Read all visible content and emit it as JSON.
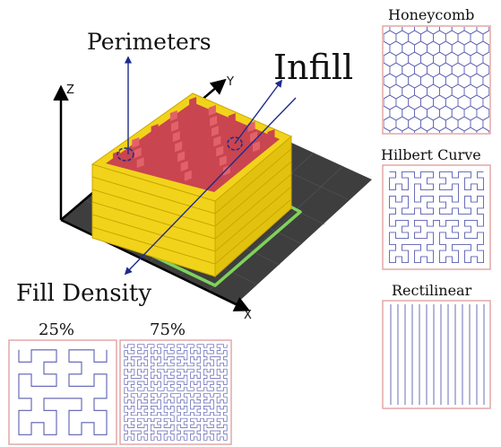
{
  "diagram": {
    "labels": {
      "perimeters": "Perimeters",
      "infill": "Infill",
      "fill_density": "Fill Density"
    },
    "axes": {
      "x": "X",
      "y": "Y",
      "z": "Z"
    }
  },
  "patterns": [
    {
      "id": "honeycomb",
      "title": "Honeycomb"
    },
    {
      "id": "hilbert",
      "title": "Hilbert Curve"
    },
    {
      "id": "rectilinear",
      "title": "Rectilinear"
    }
  ],
  "density_samples": [
    {
      "id": "low",
      "label": "25%"
    },
    {
      "id": "high",
      "label": "75%"
    }
  ],
  "colors": {
    "wall_yellow": "#f2d31b",
    "wall_yellow_dark": "#d9b800",
    "infill_red": "#e2626a",
    "infill_red_dark": "#c9454f",
    "bed_dark": "#3e3e3e",
    "skirt_green": "#7fd35a",
    "pattern_line": "#5a5fb0",
    "panel_border": "#e4a7a7",
    "arrow_blue": "#1e2a8c"
  }
}
